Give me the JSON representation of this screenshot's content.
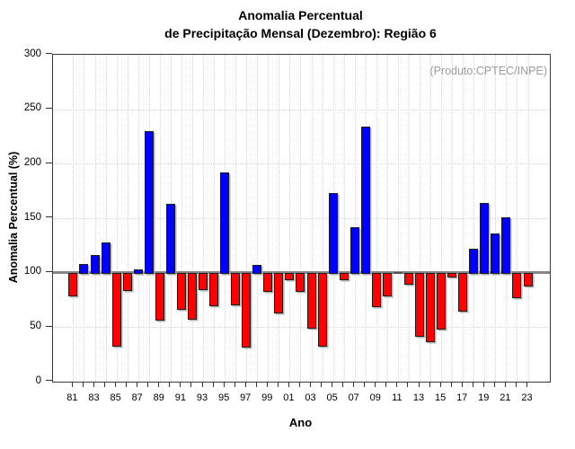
{
  "title": {
    "line1": "Anomalia Percentual",
    "line2": "de Precipitação Mensal (Dezembro): Região 6"
  },
  "annotation": "(Produto:CPTEC/INPE)",
  "chart_data": {
    "type": "bar",
    "title": "Anomalia Percentual de Precipitação Mensal (Dezembro): Região 6",
    "xlabel": "Ano",
    "ylabel": "Anomalia Percentual (%)",
    "ylim": [
      0,
      300
    ],
    "yticks": [
      0,
      50,
      100,
      150,
      200,
      250,
      300
    ],
    "baseline": 100,
    "grid": "dotted",
    "legend": null,
    "categories": [
      "81",
      "82",
      "83",
      "84",
      "85",
      "86",
      "87",
      "88",
      "89",
      "90",
      "91",
      "92",
      "93",
      "94",
      "95",
      "96",
      "97",
      "98",
      "99",
      "00",
      "01",
      "02",
      "03",
      "04",
      "05",
      "06",
      "07",
      "08",
      "09",
      "10",
      "11",
      "12",
      "13",
      "14",
      "15",
      "16",
      "17",
      "18",
      "19",
      "20",
      "21",
      "22",
      "23"
    ],
    "labeled_categories": [
      "81",
      "83",
      "85",
      "87",
      "89",
      "91",
      "93",
      "95",
      "97",
      "99",
      "01",
      "03",
      "05",
      "07",
      "09",
      "11",
      "13",
      "15",
      "17",
      "19",
      "21",
      "23"
    ],
    "values": [
      78,
      108,
      116,
      128,
      32,
      83,
      103,
      230,
      56,
      163,
      66,
      57,
      84,
      69,
      192,
      70,
      31,
      107,
      82,
      63,
      93,
      82,
      49,
      32,
      173,
      93,
      142,
      234,
      68,
      78,
      100,
      89,
      41,
      36,
      48,
      96,
      64,
      122,
      164,
      136,
      151,
      77,
      87
    ],
    "colors": {
      "above_baseline": "#0000ff",
      "below_baseline": "#ff0000",
      "baseline_line": "#868686",
      "bar_border": "#1c1c1c",
      "grid_line": "#d7d7d7",
      "annotation_text": "#9c9c9c"
    }
  }
}
